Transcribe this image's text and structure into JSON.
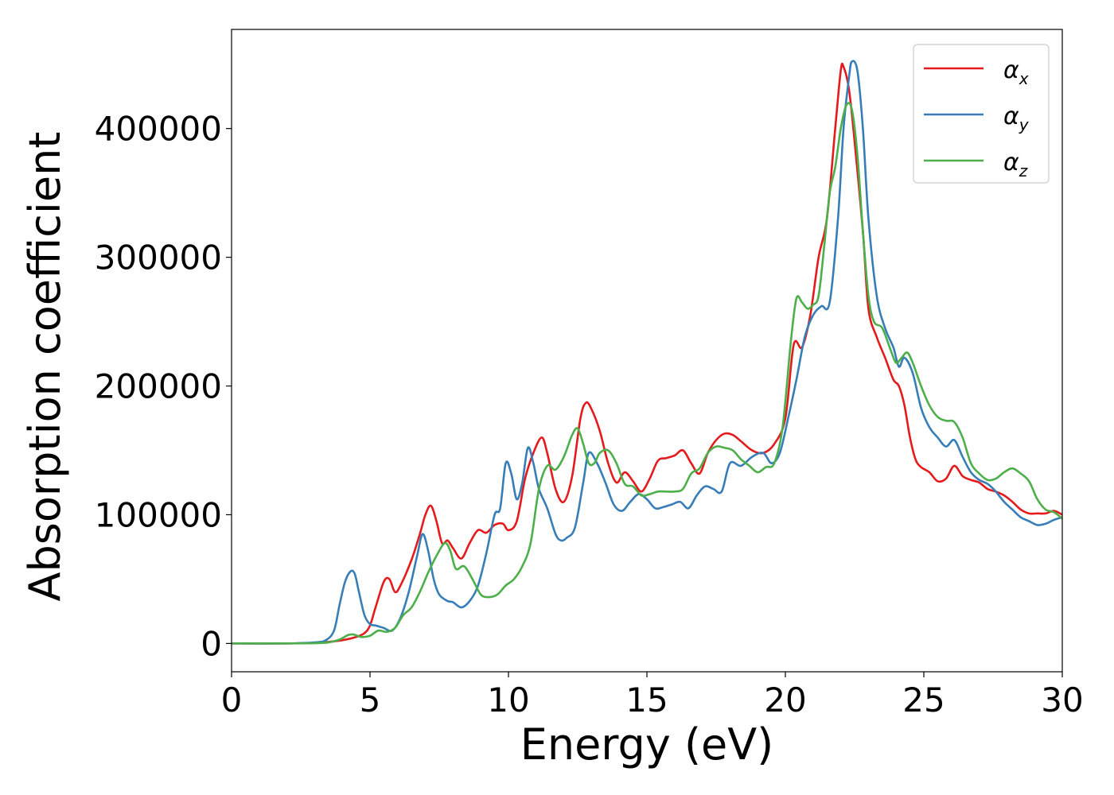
{
  "chart_data": {
    "type": "line",
    "title": "",
    "xlabel": "Energy (eV)",
    "ylabel": "Absorption coefficient",
    "xlim": [
      0,
      30
    ],
    "ylim": [
      -22000,
      477000
    ],
    "xticks": [
      0,
      5,
      10,
      15,
      20,
      25,
      30
    ],
    "yticks": [
      0,
      100000,
      200000,
      300000,
      400000
    ],
    "grid": false,
    "legend": "top-right",
    "series": [
      {
        "name": "αx",
        "symbol": "α",
        "sub": "x",
        "color": "#e41a1c",
        "x": [
          0,
          2,
          3,
          3.5,
          4,
          4.5,
          4.8,
          5.0,
          5.2,
          5.5,
          5.7,
          5.9,
          6.1,
          6.5,
          6.8,
          7.0,
          7.2,
          7.4,
          7.6,
          7.8,
          8.0,
          8.3,
          8.6,
          8.9,
          9.2,
          9.5,
          9.8,
          10.0,
          10.3,
          10.6,
          10.9,
          11.2,
          11.4,
          11.7,
          12.0,
          12.3,
          12.6,
          12.8,
          13.0,
          13.3,
          13.6,
          13.9,
          14.2,
          14.5,
          14.8,
          15.1,
          15.4,
          15.7,
          16.0,
          16.3,
          16.6,
          16.9,
          17.2,
          17.5,
          17.8,
          18.1,
          18.4,
          18.8,
          19.2,
          19.6,
          20.0,
          20.3,
          20.6,
          20.9,
          21.2,
          21.5,
          21.8,
          22.0,
          22.1,
          22.3,
          22.5,
          22.8,
          23.0,
          23.3,
          23.6,
          23.9,
          24.1,
          24.3,
          24.5,
          24.7,
          24.9,
          25.2,
          25.5,
          25.8,
          26.1,
          26.4,
          26.7,
          27.0,
          27.3,
          27.6,
          27.9,
          28.2,
          28.5,
          28.8,
          29.1,
          29.4,
          29.7,
          30
        ],
        "y": [
          0,
          0,
          500,
          1200,
          2500,
          5000,
          8000,
          14000,
          28000,
          48000,
          50000,
          40000,
          45000,
          65000,
          85000,
          100000,
          107000,
          95000,
          78000,
          80000,
          74000,
          66000,
          78000,
          88000,
          86000,
          92000,
          93000,
          88000,
          95000,
          128000,
          148000,
          160000,
          148000,
          120000,
          110000,
          130000,
          175000,
          187000,
          182000,
          165000,
          140000,
          125000,
          133000,
          126000,
          118000,
          128000,
          142000,
          144000,
          146000,
          150000,
          140000,
          132000,
          148000,
          158000,
          163000,
          162000,
          157000,
          150000,
          148000,
          155000,
          175000,
          232000,
          230000,
          255000,
          300000,
          330000,
          400000,
          445000,
          448000,
          430000,
          390000,
          320000,
          260000,
          238000,
          222000,
          205000,
          200000,
          185000,
          160000,
          143000,
          137000,
          133000,
          126000,
          128000,
          138000,
          130000,
          127000,
          125000,
          120000,
          118000,
          115000,
          110000,
          104000,
          101000,
          101000,
          101000,
          103000,
          100000
        ]
      },
      {
        "name": "αy",
        "symbol": "α",
        "sub": "y",
        "color": "#377eb8",
        "x": [
          0,
          2,
          3,
          3.4,
          3.7,
          3.9,
          4.1,
          4.3,
          4.45,
          4.6,
          4.8,
          5.0,
          5.2,
          5.5,
          5.8,
          6.1,
          6.4,
          6.7,
          6.9,
          7.1,
          7.3,
          7.5,
          7.8,
          8.0,
          8.3,
          8.6,
          8.9,
          9.2,
          9.5,
          9.7,
          9.9,
          10.1,
          10.3,
          10.5,
          10.7,
          10.9,
          11.1,
          11.4,
          11.7,
          11.9,
          12.1,
          12.4,
          12.7,
          12.9,
          13.2,
          13.5,
          13.8,
          14.1,
          14.4,
          14.7,
          15.0,
          15.3,
          15.6,
          15.9,
          16.2,
          16.5,
          16.8,
          17.1,
          17.4,
          17.7,
          18.0,
          18.4,
          18.8,
          19.2,
          19.5,
          19.8,
          20.1,
          20.4,
          20.7,
          21.0,
          21.3,
          21.6,
          21.9,
          22.1,
          22.3,
          22.4,
          22.6,
          22.8,
          23.0,
          23.3,
          23.6,
          23.9,
          24.1,
          24.3,
          24.6,
          24.9,
          25.2,
          25.5,
          25.8,
          26.1,
          26.4,
          26.7,
          27.0,
          27.3,
          27.6,
          27.9,
          28.2,
          28.5,
          28.8,
          29.1,
          29.4,
          29.7,
          30
        ],
        "y": [
          0,
          0,
          800,
          2500,
          10000,
          30000,
          48000,
          56000,
          54000,
          40000,
          22000,
          15000,
          14000,
          12000,
          10000,
          20000,
          40000,
          68000,
          85000,
          72000,
          50000,
          38000,
          33000,
          32000,
          28000,
          33000,
          45000,
          70000,
          100000,
          105000,
          140000,
          132000,
          112000,
          125000,
          152000,
          140000,
          120000,
          105000,
          85000,
          80000,
          82000,
          90000,
          125000,
          148000,
          140000,
          125000,
          108000,
          103000,
          110000,
          116000,
          112000,
          105000,
          106000,
          108000,
          110000,
          105000,
          115000,
          122000,
          120000,
          118000,
          140000,
          138000,
          145000,
          148000,
          140000,
          148000,
          175000,
          205000,
          238000,
          255000,
          262000,
          265000,
          330000,
          400000,
          440000,
          452000,
          445000,
          400000,
          330000,
          270000,
          245000,
          230000,
          215000,
          222000,
          210000,
          183000,
          168000,
          160000,
          153000,
          158000,
          145000,
          133000,
          127000,
          124000,
          118000,
          110000,
          104000,
          98000,
          95000,
          92000,
          93000,
          96000,
          98000
        ]
      },
      {
        "name": "αz",
        "symbol": "α",
        "sub": "z",
        "color": "#4daf4a",
        "x": [
          0,
          2,
          3,
          3.5,
          3.9,
          4.2,
          4.4,
          4.7,
          5.0,
          5.3,
          5.6,
          5.9,
          6.2,
          6.5,
          6.8,
          7.1,
          7.4,
          7.7,
          7.9,
          8.1,
          8.4,
          8.7,
          9.0,
          9.3,
          9.6,
          9.9,
          10.2,
          10.5,
          10.8,
          11.1,
          11.4,
          11.7,
          12.0,
          12.3,
          12.5,
          12.7,
          12.9,
          13.1,
          13.3,
          13.6,
          13.9,
          14.2,
          14.5,
          14.8,
          15.1,
          15.4,
          15.7,
          16.0,
          16.3,
          16.6,
          16.9,
          17.2,
          17.5,
          17.8,
          18.1,
          18.4,
          18.7,
          19.0,
          19.3,
          19.6,
          19.9,
          20.2,
          20.4,
          20.6,
          20.8,
          21.0,
          21.2,
          21.4,
          21.6,
          21.8,
          22.0,
          22.2,
          22.4,
          22.6,
          22.8,
          23.0,
          23.2,
          23.5,
          23.8,
          24.0,
          24.2,
          24.4,
          24.6,
          24.9,
          25.2,
          25.5,
          25.8,
          26.1,
          26.4,
          26.7,
          27.0,
          27.3,
          27.6,
          27.9,
          28.2,
          28.5,
          28.8,
          29.1,
          29.4,
          29.7,
          30
        ],
        "y": [
          0,
          0,
          200,
          800,
          3000,
          6500,
          7000,
          5000,
          6000,
          10000,
          9000,
          12000,
          22000,
          28000,
          40000,
          55000,
          68000,
          78000,
          72000,
          58000,
          60000,
          50000,
          38000,
          36000,
          38000,
          45000,
          50000,
          60000,
          78000,
          120000,
          138000,
          135000,
          145000,
          162000,
          167000,
          155000,
          140000,
          140000,
          148000,
          150000,
          140000,
          124000,
          122000,
          115000,
          116000,
          118000,
          118000,
          118000,
          120000,
          132000,
          136000,
          148000,
          153000,
          152000,
          150000,
          143000,
          138000,
          133000,
          137000,
          140000,
          168000,
          235000,
          268000,
          265000,
          260000,
          263000,
          270000,
          308000,
          350000,
          370000,
          400000,
          418000,
          415000,
          380000,
          320000,
          270000,
          250000,
          245000,
          228000,
          218000,
          222000,
          226000,
          218000,
          200000,
          185000,
          176000,
          173000,
          172000,
          160000,
          140000,
          132000,
          127000,
          128000,
          133000,
          136000,
          132000,
          126000,
          112000,
          104000,
          102000,
          97000
        ]
      }
    ]
  }
}
